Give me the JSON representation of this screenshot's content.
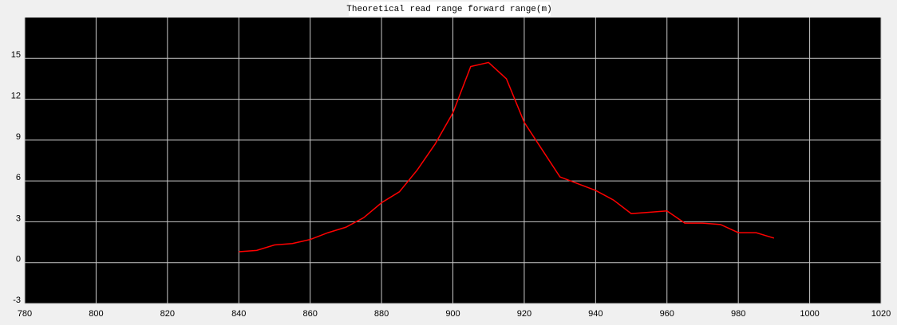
{
  "chart_data": {
    "type": "line",
    "title": "Theoretical read range forward range(m)",
    "x": [
      840,
      845,
      850,
      855,
      860,
      865,
      870,
      875,
      880,
      885,
      890,
      895,
      900,
      905,
      910,
      915,
      920,
      925,
      930,
      935,
      940,
      945,
      950,
      955,
      960,
      965,
      970,
      975,
      980,
      985,
      990
    ],
    "series": [
      {
        "color": "#ff0000",
        "values": [
          0.8,
          0.9,
          1.3,
          1.4,
          1.7,
          2.2,
          2.6,
          3.3,
          4.4,
          5.2,
          6.8,
          8.7,
          11.0,
          14.4,
          14.7,
          13.5,
          10.3,
          8.3,
          6.3,
          5.8,
          5.3,
          4.6,
          3.6,
          3.7,
          3.8,
          2.9,
          2.9,
          2.8,
          2.2,
          2.2,
          1.8
        ]
      }
    ],
    "xlim": [
      780,
      1020
    ],
    "xticks": [
      780,
      800,
      820,
      840,
      860,
      880,
      900,
      920,
      940,
      960,
      980,
      1000,
      1020
    ],
    "ylim": [
      -3,
      18
    ],
    "yticks": [
      -3,
      0,
      3,
      6,
      9,
      12,
      15
    ],
    "grid": true
  }
}
